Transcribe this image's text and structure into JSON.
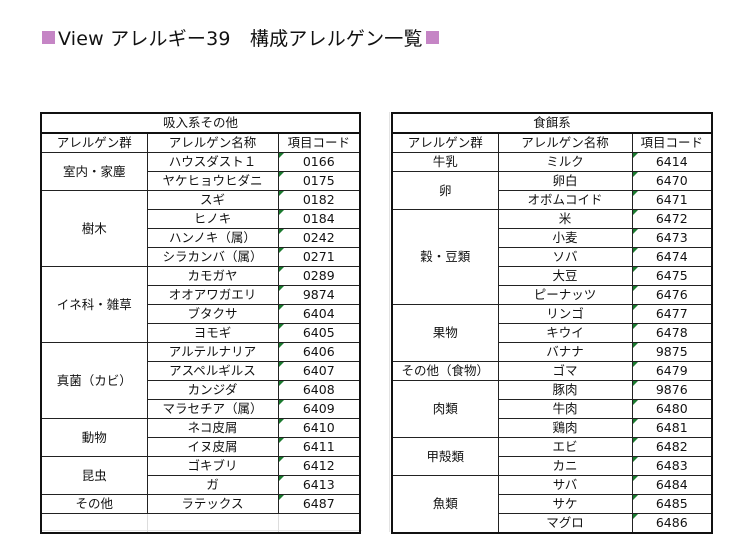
{
  "title": {
    "text": "View アレルギー39　構成アレルゲン一覧"
  },
  "colors": {
    "title_square": "#c585c5",
    "cell_marker": "#1a7a2e",
    "border": "#111111"
  },
  "inhaled": {
    "caption": "吸入系その他",
    "headers": {
      "group": "アレルゲン群",
      "name": "アレルゲン名称",
      "code": "項目コード"
    },
    "groups": [
      {
        "label": "室内・家塵",
        "items": [
          {
            "name": "ハウスダスト１",
            "code": "0166"
          },
          {
            "name": "ヤケヒョウヒダニ",
            "code": "0175"
          }
        ]
      },
      {
        "label": "樹木",
        "items": [
          {
            "name": "スギ",
            "code": "0182"
          },
          {
            "name": "ヒノキ",
            "code": "0184"
          },
          {
            "name": "ハンノキ（属）",
            "code": "0242"
          },
          {
            "name": "シラカンバ（属）",
            "code": "0271"
          }
        ]
      },
      {
        "label": "イネ科・雑草",
        "items": [
          {
            "name": "カモガヤ",
            "code": "0289"
          },
          {
            "name": "オオアワガエリ",
            "code": "9874"
          },
          {
            "name": "ブタクサ",
            "code": "6404"
          },
          {
            "name": "ヨモギ",
            "code": "6405"
          }
        ]
      },
      {
        "label": "真菌（カビ）",
        "items": [
          {
            "name": "アルテルナリア",
            "code": "6406"
          },
          {
            "name": "アスペルギルス",
            "code": "6407"
          },
          {
            "name": "カンジダ",
            "code": "6408"
          },
          {
            "name": "マラセチア（属）",
            "code": "6409"
          }
        ]
      },
      {
        "label": "動物",
        "items": [
          {
            "name": "ネコ皮屑",
            "code": "6410"
          },
          {
            "name": "イヌ皮屑",
            "code": "6411"
          }
        ]
      },
      {
        "label": "昆虫",
        "items": [
          {
            "name": "ゴキブリ",
            "code": "6412"
          },
          {
            "name": "ガ",
            "code": "6413"
          }
        ]
      },
      {
        "label": "その他",
        "items": [
          {
            "name": "ラテックス",
            "code": "6487"
          }
        ]
      }
    ]
  },
  "food": {
    "caption": "食餌系",
    "headers": {
      "group": "アレルゲン群",
      "name": "アレルゲン名称",
      "code": "項目コード"
    },
    "groups": [
      {
        "label": "牛乳",
        "items": [
          {
            "name": "ミルク",
            "code": "6414"
          }
        ]
      },
      {
        "label": "卵",
        "items": [
          {
            "name": "卵白",
            "code": "6470"
          },
          {
            "name": "オボムコイド",
            "code": "6471"
          }
        ]
      },
      {
        "label": "穀・豆類",
        "items": [
          {
            "name": "米",
            "code": "6472"
          },
          {
            "name": "小麦",
            "code": "6473"
          },
          {
            "name": "ソバ",
            "code": "6474"
          },
          {
            "name": "大豆",
            "code": "6475"
          },
          {
            "name": "ピーナッツ",
            "code": "6476"
          }
        ]
      },
      {
        "label": "果物",
        "items": [
          {
            "name": "リンゴ",
            "code": "6477"
          },
          {
            "name": "キウイ",
            "code": "6478"
          },
          {
            "name": "バナナ",
            "code": "9875"
          }
        ]
      },
      {
        "label": "その他（食物）",
        "items": [
          {
            "name": "ゴマ",
            "code": "6479"
          }
        ]
      },
      {
        "label": "肉類",
        "items": [
          {
            "name": "豚肉",
            "code": "9876"
          },
          {
            "name": "牛肉",
            "code": "6480"
          },
          {
            "name": "鶏肉",
            "code": "6481"
          }
        ]
      },
      {
        "label": "甲殻類",
        "items": [
          {
            "name": "エビ",
            "code": "6482"
          },
          {
            "name": "カニ",
            "code": "6483"
          }
        ]
      },
      {
        "label": "魚類",
        "items": [
          {
            "name": "サバ",
            "code": "6484"
          },
          {
            "name": "サケ",
            "code": "6485"
          },
          {
            "name": "マグロ",
            "code": "6486"
          }
        ]
      }
    ]
  }
}
